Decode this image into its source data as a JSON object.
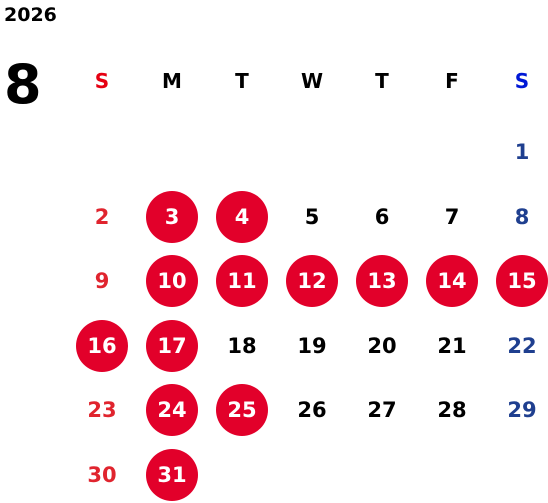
{
  "year": "2026",
  "month": "8",
  "weekdays": [
    "S",
    "M",
    "T",
    "W",
    "T",
    "F",
    "S"
  ],
  "header_colors": [
    "#e60012",
    "#000000",
    "#000000",
    "#000000",
    "#000000",
    "#000000",
    "#0018d6"
  ],
  "day_colors": [
    "#e0242e",
    "#000000",
    "#000000",
    "#000000",
    "#000000",
    "#000000",
    "#1f3f8f"
  ],
  "highlight_color": "#e2002a",
  "highlight_text_color": "#ffffff",
  "weeks": [
    [
      null,
      null,
      null,
      null,
      null,
      null,
      {
        "day": 1,
        "highlight": false
      }
    ],
    [
      {
        "day": 2,
        "highlight": false
      },
      {
        "day": 3,
        "highlight": true
      },
      {
        "day": 4,
        "highlight": true
      },
      {
        "day": 5,
        "highlight": false
      },
      {
        "day": 6,
        "highlight": false
      },
      {
        "day": 7,
        "highlight": false
      },
      {
        "day": 8,
        "highlight": false
      }
    ],
    [
      {
        "day": 9,
        "highlight": false
      },
      {
        "day": 10,
        "highlight": true
      },
      {
        "day": 11,
        "highlight": true
      },
      {
        "day": 12,
        "highlight": true
      },
      {
        "day": 13,
        "highlight": true
      },
      {
        "day": 14,
        "highlight": true
      },
      {
        "day": 15,
        "highlight": true
      }
    ],
    [
      {
        "day": 16,
        "highlight": true
      },
      {
        "day": 17,
        "highlight": true
      },
      {
        "day": 18,
        "highlight": false
      },
      {
        "day": 19,
        "highlight": false
      },
      {
        "day": 20,
        "highlight": false
      },
      {
        "day": 21,
        "highlight": false
      },
      {
        "day": 22,
        "highlight": false
      }
    ],
    [
      {
        "day": 23,
        "highlight": false
      },
      {
        "day": 24,
        "highlight": true
      },
      {
        "day": 25,
        "highlight": true
      },
      {
        "day": 26,
        "highlight": false
      },
      {
        "day": 27,
        "highlight": false
      },
      {
        "day": 28,
        "highlight": false
      },
      {
        "day": 29,
        "highlight": false
      }
    ],
    [
      {
        "day": 30,
        "highlight": false
      },
      {
        "day": 31,
        "highlight": true
      }
    ]
  ]
}
